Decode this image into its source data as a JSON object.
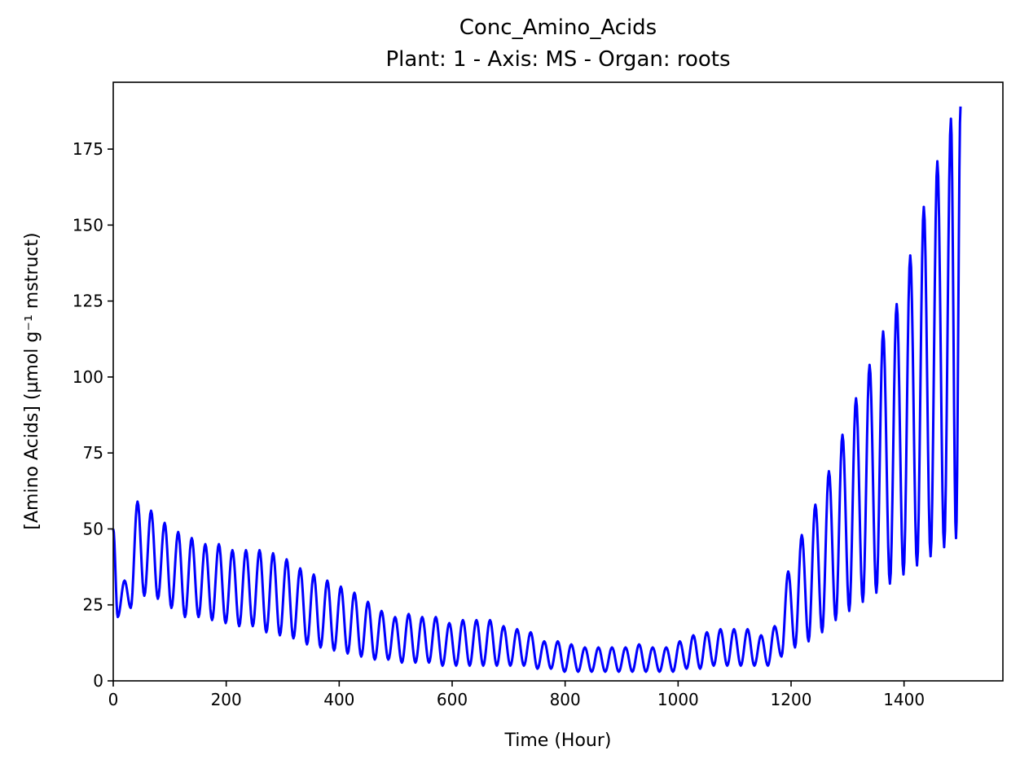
{
  "chart_data": {
    "type": "line",
    "title": "Conc_Amino_Acids",
    "subtitle": "Plant: 1 - Axis: MS - Organ: roots",
    "xlabel": "Time (Hour)",
    "ylabel": "[Amino Acids] (µmol g⁻¹ mstruct)",
    "xlim": [
      0,
      1575
    ],
    "ylim": [
      0,
      197
    ],
    "xticks": [
      0,
      200,
      400,
      600,
      800,
      1000,
      1200,
      1400
    ],
    "yticks": [
      0,
      25,
      50,
      75,
      100,
      125,
      150,
      175
    ],
    "grid": false,
    "color": "#0000ff",
    "oscillation_period_hours": 24,
    "peaks": [
      {
        "x": 20,
        "y": 33
      },
      {
        "x": 43,
        "y": 59
      },
      {
        "x": 67,
        "y": 56
      },
      {
        "x": 91,
        "y": 52
      },
      {
        "x": 115,
        "y": 49
      },
      {
        "x": 139,
        "y": 47
      },
      {
        "x": 163,
        "y": 45
      },
      {
        "x": 187,
        "y": 45
      },
      {
        "x": 211,
        "y": 43
      },
      {
        "x": 235,
        "y": 43
      },
      {
        "x": 259,
        "y": 43
      },
      {
        "x": 283,
        "y": 42
      },
      {
        "x": 307,
        "y": 40
      },
      {
        "x": 331,
        "y": 37
      },
      {
        "x": 355,
        "y": 35
      },
      {
        "x": 379,
        "y": 33
      },
      {
        "x": 403,
        "y": 31
      },
      {
        "x": 427,
        "y": 29
      },
      {
        "x": 451,
        "y": 26
      },
      {
        "x": 475,
        "y": 23
      },
      {
        "x": 499,
        "y": 21
      },
      {
        "x": 523,
        "y": 22
      },
      {
        "x": 547,
        "y": 21
      },
      {
        "x": 571,
        "y": 21
      },
      {
        "x": 595,
        "y": 19
      },
      {
        "x": 619,
        "y": 20
      },
      {
        "x": 643,
        "y": 20
      },
      {
        "x": 667,
        "y": 20
      },
      {
        "x": 691,
        "y": 18
      },
      {
        "x": 715,
        "y": 17
      },
      {
        "x": 739,
        "y": 16
      },
      {
        "x": 763,
        "y": 13
      },
      {
        "x": 787,
        "y": 13
      },
      {
        "x": 811,
        "y": 12
      },
      {
        "x": 835,
        "y": 11
      },
      {
        "x": 859,
        "y": 11
      },
      {
        "x": 883,
        "y": 11
      },
      {
        "x": 907,
        "y": 11
      },
      {
        "x": 931,
        "y": 12
      },
      {
        "x": 955,
        "y": 11
      },
      {
        "x": 979,
        "y": 11
      },
      {
        "x": 1003,
        "y": 13
      },
      {
        "x": 1027,
        "y": 15
      },
      {
        "x": 1051,
        "y": 16
      },
      {
        "x": 1075,
        "y": 17
      },
      {
        "x": 1099,
        "y": 17
      },
      {
        "x": 1123,
        "y": 17
      },
      {
        "x": 1147,
        "y": 15
      },
      {
        "x": 1171,
        "y": 18
      },
      {
        "x": 1195,
        "y": 36
      },
      {
        "x": 1219,
        "y": 48
      },
      {
        "x": 1243,
        "y": 58
      },
      {
        "x": 1267,
        "y": 69
      },
      {
        "x": 1291,
        "y": 81
      },
      {
        "x": 1315,
        "y": 93
      },
      {
        "x": 1339,
        "y": 104
      },
      {
        "x": 1363,
        "y": 115
      },
      {
        "x": 1387,
        "y": 124
      },
      {
        "x": 1411,
        "y": 140
      },
      {
        "x": 1435,
        "y": 156
      },
      {
        "x": 1459,
        "y": 171
      },
      {
        "x": 1483,
        "y": 185
      }
    ],
    "troughs": [
      {
        "x": 8,
        "y": 21
      },
      {
        "x": 31,
        "y": 24
      },
      {
        "x": 55,
        "y": 28
      },
      {
        "x": 79,
        "y": 27
      },
      {
        "x": 103,
        "y": 24
      },
      {
        "x": 127,
        "y": 21
      },
      {
        "x": 151,
        "y": 21
      },
      {
        "x": 175,
        "y": 20
      },
      {
        "x": 199,
        "y": 19
      },
      {
        "x": 223,
        "y": 18
      },
      {
        "x": 247,
        "y": 18
      },
      {
        "x": 271,
        "y": 16
      },
      {
        "x": 295,
        "y": 15
      },
      {
        "x": 319,
        "y": 14
      },
      {
        "x": 343,
        "y": 12
      },
      {
        "x": 367,
        "y": 11
      },
      {
        "x": 391,
        "y": 10
      },
      {
        "x": 415,
        "y": 9
      },
      {
        "x": 439,
        "y": 8
      },
      {
        "x": 463,
        "y": 7
      },
      {
        "x": 487,
        "y": 7
      },
      {
        "x": 511,
        "y": 6
      },
      {
        "x": 535,
        "y": 6
      },
      {
        "x": 559,
        "y": 6
      },
      {
        "x": 583,
        "y": 5
      },
      {
        "x": 607,
        "y": 5
      },
      {
        "x": 631,
        "y": 5
      },
      {
        "x": 655,
        "y": 5
      },
      {
        "x": 679,
        "y": 5
      },
      {
        "x": 703,
        "y": 5
      },
      {
        "x": 727,
        "y": 5
      },
      {
        "x": 751,
        "y": 4
      },
      {
        "x": 775,
        "y": 4
      },
      {
        "x": 799,
        "y": 3
      },
      {
        "x": 823,
        "y": 3
      },
      {
        "x": 847,
        "y": 3
      },
      {
        "x": 871,
        "y": 3
      },
      {
        "x": 895,
        "y": 3
      },
      {
        "x": 919,
        "y": 3
      },
      {
        "x": 943,
        "y": 3
      },
      {
        "x": 967,
        "y": 3
      },
      {
        "x": 991,
        "y": 3
      },
      {
        "x": 1015,
        "y": 4
      },
      {
        "x": 1039,
        "y": 4
      },
      {
        "x": 1063,
        "y": 5
      },
      {
        "x": 1087,
        "y": 5
      },
      {
        "x": 1111,
        "y": 5
      },
      {
        "x": 1135,
        "y": 5
      },
      {
        "x": 1159,
        "y": 5
      },
      {
        "x": 1183,
        "y": 8
      },
      {
        "x": 1207,
        "y": 11
      },
      {
        "x": 1231,
        "y": 13
      },
      {
        "x": 1255,
        "y": 16
      },
      {
        "x": 1279,
        "y": 20
      },
      {
        "x": 1303,
        "y": 23
      },
      {
        "x": 1327,
        "y": 26
      },
      {
        "x": 1351,
        "y": 29
      },
      {
        "x": 1375,
        "y": 32
      },
      {
        "x": 1399,
        "y": 35
      },
      {
        "x": 1423,
        "y": 38
      },
      {
        "x": 1447,
        "y": 41
      },
      {
        "x": 1471,
        "y": 44
      },
      {
        "x": 1492,
        "y": 47
      }
    ],
    "start": {
      "x": 0,
      "y": 50
    },
    "end": {
      "x": 1500,
      "y": 189
    }
  }
}
